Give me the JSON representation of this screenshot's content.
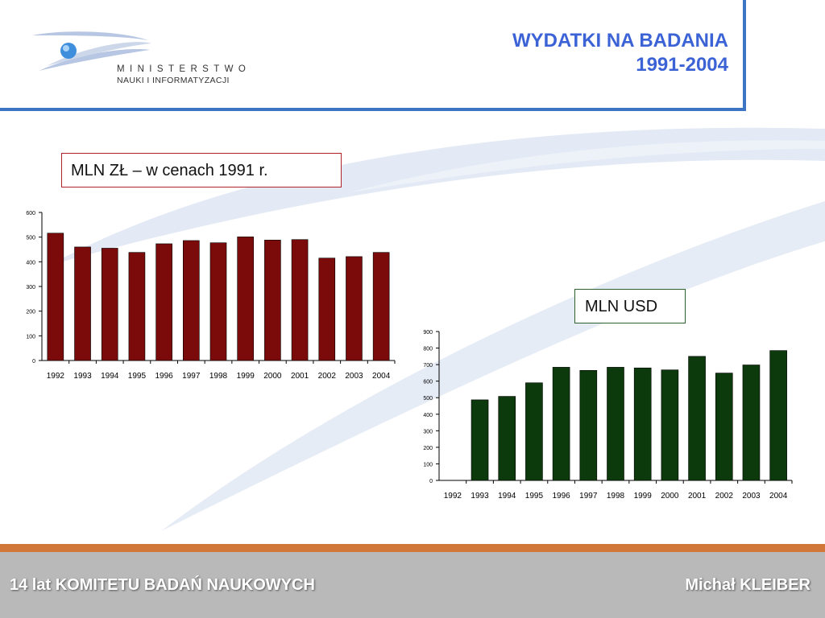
{
  "header": {
    "title_line1": "WYDATKI NA BADANIA",
    "title_line2": "1991-2004",
    "logo_line1": "MINISTERSTWO",
    "logo_line2": "NAUKI I INFORMATYZACJI"
  },
  "colors": {
    "title": "#3b63d6",
    "header_rule": "#3d74c4",
    "bar_pln": "#7b0a0a",
    "bar_usd": "#0d3a0d",
    "footer_orange": "#d2773a",
    "footer_gray": "#b9b9b9"
  },
  "chart_data": [
    {
      "type": "bar",
      "categories": [
        "1992",
        "1993",
        "1994",
        "1995",
        "1996",
        "1997",
        "1998",
        "1999",
        "2000",
        "2001",
        "2002",
        "2003",
        "2004"
      ],
      "values": [
        516,
        460,
        455,
        438,
        473,
        486,
        477,
        501,
        488,
        490,
        415,
        421,
        438
      ],
      "yticks": [
        0,
        100,
        200,
        300,
        400,
        500,
        600
      ],
      "ylim": [
        0,
        600
      ],
      "grid": false,
      "title": "MLN ZŁ – w cenach 1991 r."
    },
    {
      "type": "bar",
      "categories": [
        "1992",
        "1993",
        "1994",
        "1995",
        "1996",
        "1997",
        "1998",
        "1999",
        "2000",
        "2001",
        "2002",
        "2003",
        "2004"
      ],
      "values": [
        0,
        487,
        508,
        590,
        684,
        665,
        684,
        680,
        668,
        750,
        649,
        698,
        785
      ],
      "yticks": [
        0,
        100,
        200,
        300,
        400,
        500,
        600,
        700,
        800,
        900
      ],
      "ylim": [
        0,
        900
      ],
      "grid": false,
      "title": "MLN USD"
    }
  ],
  "footer": {
    "left": "14 lat KOMITETU BADAŃ NAUKOWYCH",
    "right": "Michał KLEIBER"
  }
}
